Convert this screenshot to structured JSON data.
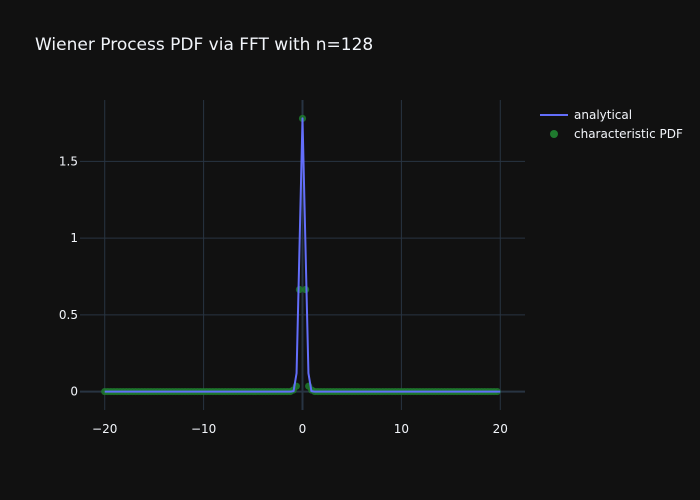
{
  "chart_data": {
    "type": "line",
    "title": "Wiener Process PDF via FFT with n=128",
    "xlabel": "",
    "ylabel": "",
    "xlim": [
      -22.5,
      22.5
    ],
    "ylim": [
      -0.12,
      1.9
    ],
    "x_ticks": [
      {
        "value": -20,
        "label": "−20"
      },
      {
        "value": -10,
        "label": "−10"
      },
      {
        "value": 0,
        "label": "0"
      },
      {
        "value": 10,
        "label": "10"
      },
      {
        "value": 20,
        "label": "20"
      }
    ],
    "y_ticks": [
      {
        "value": 0,
        "label": "0"
      },
      {
        "value": 0.5,
        "label": "0.5"
      },
      {
        "value": 1,
        "label": "1"
      },
      {
        "value": 1.5,
        "label": "1.5"
      }
    ],
    "grid": true,
    "legend_position": "top-right",
    "series": [
      {
        "name": "analytical",
        "mode": "line",
        "color": "#636efa",
        "x": [
          -20,
          -1.2,
          -0.9,
          -0.6,
          -0.3,
          0,
          0.3,
          0.6,
          0.9,
          1.2,
          20
        ],
        "y": [
          0,
          0,
          0.003,
          0.12,
          0.95,
          1.78,
          0.95,
          0.12,
          0.003,
          0,
          0
        ]
      },
      {
        "name": "characteristic PDF",
        "mode": "markers",
        "color": "#1f7a2e",
        "x_start": -20,
        "x_step": 0.3125,
        "count": 128,
        "nonzero": [
          {
            "x": -0.9375,
            "y": 0.01
          },
          {
            "x": -0.625,
            "y": 0.035
          },
          {
            "x": -0.3125,
            "y": 0.665
          },
          {
            "x": 0,
            "y": 1.78
          },
          {
            "x": 0.3125,
            "y": 0.665
          },
          {
            "x": 0.625,
            "y": 0.035
          },
          {
            "x": 0.9375,
            "y": 0.01
          }
        ]
      }
    ]
  },
  "colors": {
    "background": "#111111",
    "grid": "#283442",
    "zeroline": "#283442",
    "text": "#f2f5fa",
    "analytical": "#636efa",
    "markers": "#1f7a2e"
  }
}
